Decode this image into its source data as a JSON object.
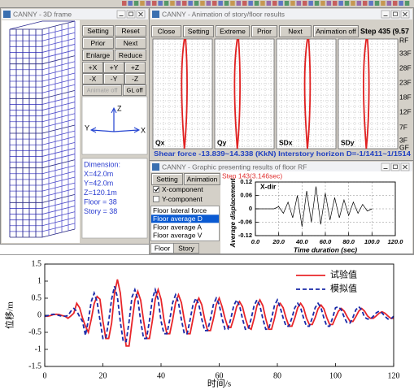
{
  "windows": {
    "frame3d": {
      "title": "CANNY - 3D frame",
      "buttons": [
        "Setting",
        "Reset",
        "Prior",
        "Next",
        "Enlarge",
        "Reduce",
        "+X",
        "+Y",
        "+Z",
        "-X",
        "-Y",
        "-Z",
        "Animate off",
        "GL off"
      ],
      "disabled_buttons": [
        12
      ],
      "axes": [
        "Z",
        "Y",
        "X"
      ],
      "info": [
        "Dimension:",
        "X=42.0m",
        "Y=42.0m",
        "Z=120.1m",
        "Floor = 38",
        "Story = 38"
      ]
    },
    "animation": {
      "title": "CANNY - Animation of story/floor results",
      "buttons": [
        "Close",
        "Setting",
        "Extreme",
        "Prior",
        "Next",
        "Animation off"
      ],
      "step": "Step 435 (9.57",
      "panels": [
        "Qx",
        "Qy",
        "SDx",
        "SDy"
      ],
      "floors": [
        "RF",
        "33F",
        "28F",
        "23F",
        "18F",
        "12F",
        "7F",
        "3F",
        "GF"
      ],
      "status": "Shear force -13.839~14.338 (KkN) Interstory horizon D=-1/1411~1/1514"
    },
    "graphic": {
      "title": "CANNY - Graphic presenting results of floor RF",
      "buttons": [
        "Setting",
        "Animation"
      ],
      "checkboxes": [
        "X-component",
        "Y-component"
      ],
      "checked": [
        true,
        false
      ],
      "list": [
        "Floor lateral force",
        "Floor average D",
        "Floor average A",
        "Floor average V"
      ],
      "selected": 1,
      "tabs": [
        "Floor",
        "Story"
      ],
      "step": "Step 143(3.146sec)"
    }
  },
  "chart_data": [
    {
      "type": "line",
      "xlabel": "时间/s",
      "ylabel": "位移/m",
      "x": [
        0,
        1,
        2,
        3,
        4,
        5,
        6,
        7,
        8,
        9,
        10,
        11,
        12,
        13,
        14,
        15,
        16,
        17,
        18,
        19,
        20,
        21,
        22,
        23,
        24,
        25,
        26,
        27,
        28,
        29,
        30,
        31,
        32,
        33,
        34,
        35,
        36,
        37,
        38,
        39,
        40,
        41,
        42,
        43,
        44,
        45,
        46,
        47,
        48,
        49,
        50,
        51,
        52,
        53,
        54,
        55,
        56,
        57,
        58,
        59,
        60,
        61,
        62,
        63,
        64,
        65,
        66,
        67,
        68,
        69,
        70,
        71,
        72,
        73,
        74,
        75,
        76,
        77,
        78,
        79,
        80,
        81,
        82,
        83,
        84,
        85,
        86,
        87,
        88,
        89,
        90,
        91,
        92,
        93,
        94,
        95,
        96,
        97,
        98,
        99,
        100,
        101,
        102,
        103,
        104,
        105,
        106,
        107,
        108,
        109,
        110,
        111,
        112,
        113,
        114,
        115,
        116,
        117,
        118,
        119,
        120
      ],
      "series": [
        {
          "name": "试验值",
          "color": "#e8262a",
          "style": "solid",
          "values": [
            -0.03,
            -0.03,
            -0.01,
            0.02,
            0.03,
            0.02,
            -0.01,
            -0.03,
            -0.09,
            -0.02,
            0.06,
            0.35,
            0.22,
            -0.08,
            -0.32,
            -0.5,
            -0.12,
            0.34,
            0.55,
            0.47,
            -0.17,
            -0.68,
            -0.68,
            -0.23,
            0.65,
            1.05,
            0.65,
            -0.22,
            -0.9,
            -0.9,
            -0.22,
            0.44,
            0.7,
            0.44,
            -0.16,
            -0.68,
            -0.68,
            -0.17,
            0.47,
            0.75,
            0.47,
            -0.13,
            -0.54,
            -0.54,
            -0.13,
            0.37,
            0.6,
            0.37,
            -0.13,
            -0.54,
            -0.54,
            -0.11,
            0.31,
            0.5,
            0.31,
            -0.11,
            -0.45,
            -0.45,
            -0.11,
            0.31,
            0.5,
            0.25,
            -0.09,
            -0.36,
            -0.36,
            -0.09,
            0.25,
            0.4,
            0.25,
            -0.09,
            -0.36,
            -0.41,
            -0.1,
            0.28,
            0.45,
            0.28,
            -0.1,
            -0.41,
            -0.41,
            -0.1,
            0.28,
            0.35,
            0.22,
            -0.08,
            -0.32,
            -0.32,
            -0.08,
            0.22,
            0.35,
            0.22,
            -0.08,
            -0.27,
            -0.27,
            -0.07,
            0.19,
            0.3,
            0.19,
            -0.07,
            -0.27,
            -0.27,
            -0.07,
            0.12,
            0.2,
            0.12,
            -0.04,
            -0.18,
            -0.18,
            -0.04,
            0.12,
            0.2,
            0.12,
            -0.02,
            -0.09,
            -0.09,
            -0.02,
            0.06,
            0.1,
            0.06,
            -0.02,
            -0.09,
            -0.09
          ]
        },
        {
          "name": "模拟值",
          "color": "#1a2aa8",
          "style": "dashed",
          "values": [
            -0.03,
            -0.01,
            0.02,
            0.03,
            0.02,
            -0.01,
            -0.03,
            -0.03,
            -0.01,
            0.12,
            0.2,
            0.12,
            -0.04,
            -0.18,
            -0.59,
            -0.14,
            0.4,
            0.65,
            0.4,
            -0.14,
            -0.68,
            -0.68,
            -0.17,
            0.47,
            0.85,
            0.53,
            -0.19,
            -0.77,
            -0.77,
            -0.19,
            0.53,
            0.75,
            0.47,
            -0.17,
            -0.68,
            -0.68,
            -0.17,
            0.47,
            0.75,
            0.47,
            -0.17,
            -0.54,
            -0.54,
            -0.13,
            0.37,
            0.6,
            0.37,
            -0.13,
            -0.54,
            -0.54,
            -0.13,
            0.31,
            0.5,
            0.31,
            -0.11,
            -0.45,
            -0.45,
            -0.11,
            0.31,
            0.5,
            0.31,
            -0.1,
            -0.41,
            -0.41,
            -0.1,
            0.28,
            0.45,
            0.28,
            -0.1,
            -0.41,
            -0.41,
            -0.1,
            0.28,
            0.45,
            0.28,
            -0.1,
            -0.41,
            -0.41,
            -0.1,
            0.28,
            0.45,
            0.22,
            -0.08,
            -0.32,
            -0.32,
            -0.08,
            0.22,
            0.35,
            0.22,
            -0.08,
            -0.32,
            -0.32,
            -0.08,
            0.22,
            0.35,
            0.22,
            -0.08,
            -0.32,
            -0.32,
            -0.08,
            0.22,
            0.25,
            0.16,
            -0.06,
            -0.23,
            -0.23,
            -0.06,
            0.16,
            0.25,
            0.16,
            -0.06,
            -0.11,
            -0.11,
            -0.03,
            0.07,
            0.12,
            0.07,
            -0.03,
            -0.11,
            -0.11,
            -0.03
          ]
        }
      ],
      "xlim": [
        0,
        120
      ],
      "xticks": [
        0,
        20,
        40,
        60,
        80,
        100,
        120
      ],
      "ylim": [
        -1.5,
        1.5
      ],
      "yticks": [
        -1.5,
        -1,
        -0.5,
        0,
        0.5,
        1,
        1.5
      ],
      "legend": "upper right",
      "grid": false
    },
    {
      "type": "line",
      "annotation": "X-dir",
      "xlabel": "Time duration (sec)",
      "ylabel": "Average displacement",
      "x": [
        0,
        4,
        8,
        12,
        16,
        20,
        24,
        28,
        32,
        36,
        40,
        44,
        48,
        52,
        56,
        60,
        64,
        68,
        72,
        76,
        80,
        84,
        88,
        92,
        96,
        100
      ],
      "series": [
        {
          "name": null,
          "color": "#000000",
          "style": "solid",
          "values": [
            0,
            0,
            0,
            0,
            0,
            0.01,
            -0.02,
            0.03,
            -0.04,
            0.06,
            -0.08,
            0.08,
            -0.06,
            0.1,
            -0.07,
            0.07,
            -0.05,
            0.05,
            -0.04,
            0.04,
            -0.03,
            0.03,
            -0.02,
            0.02,
            -0.01,
            0
          ]
        }
      ],
      "xlim": [
        0,
        120
      ],
      "xticks": [
        {
          "value": 0,
          "label": "0.0"
        },
        {
          "value": 20,
          "label": "20.0"
        },
        {
          "value": 40,
          "label": "40.0"
        },
        {
          "value": 60,
          "label": "60.0"
        },
        {
          "value": 80,
          "label": "80.0"
        },
        {
          "value": 100,
          "label": "100.0"
        },
        {
          "value": 120,
          "label": "120.0"
        }
      ],
      "ylim": [
        -0.12,
        0.12
      ],
      "yticks": [
        -0.12,
        -0.06,
        0,
        0.06,
        0.12
      ],
      "grid": true
    }
  ]
}
